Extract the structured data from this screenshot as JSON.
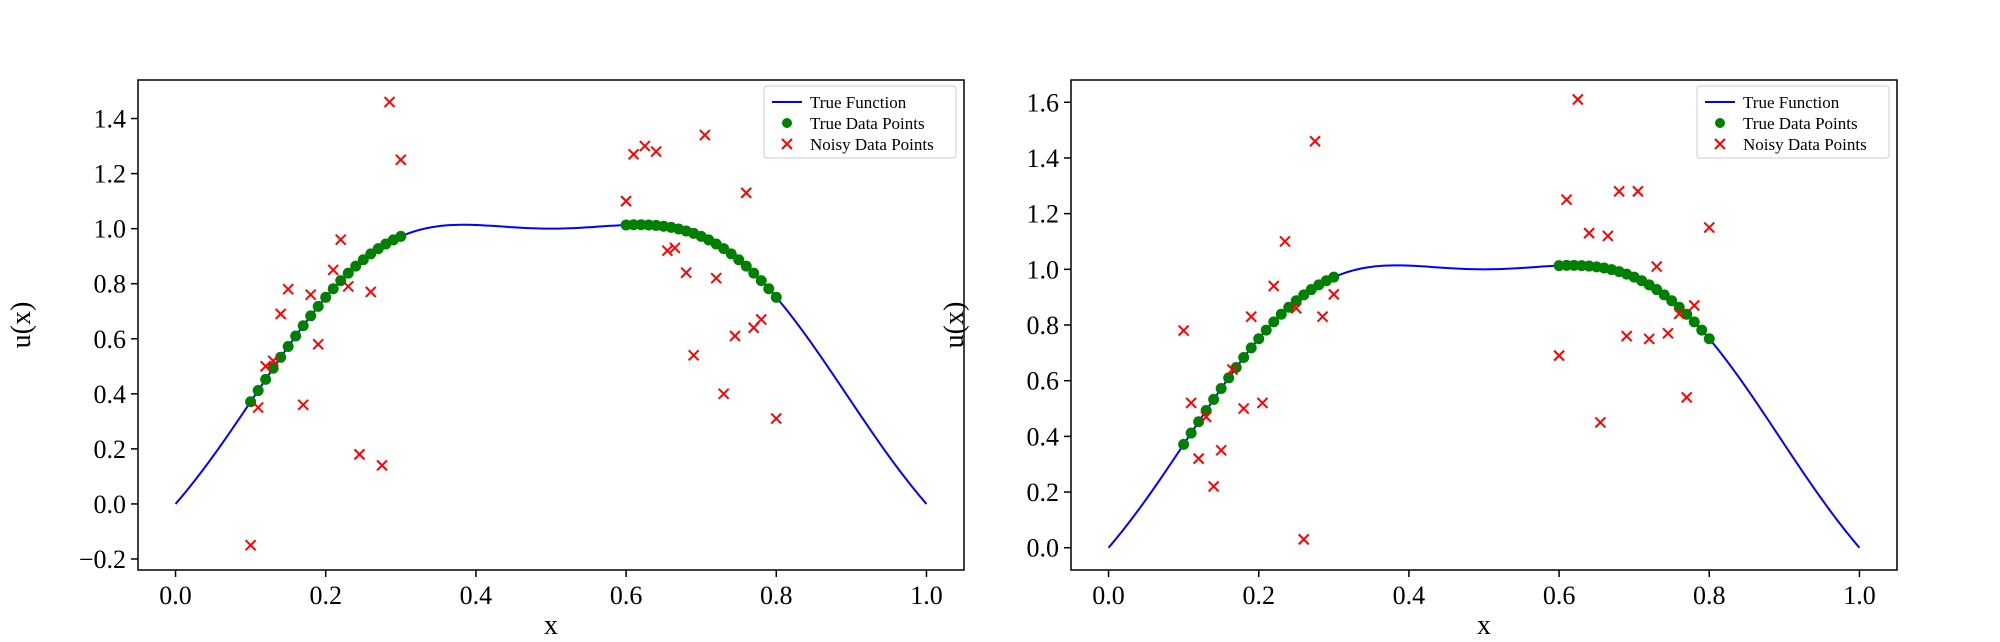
{
  "colors": {
    "true_function": "#0000ff",
    "true_points": "#008000",
    "noisy_points": "#ff0000",
    "axes": "#000000"
  },
  "chart_data": [
    {
      "type": "scatter",
      "title": "",
      "xlabel": "x",
      "ylabel": "u(x)",
      "xlim": [
        -0.05,
        1.05
      ],
      "ylim": [
        -0.24,
        1.54
      ],
      "xticks": [
        0.0,
        0.2,
        0.4,
        0.6,
        0.8,
        1.0
      ],
      "xtick_labels": [
        "0.0",
        "0.2",
        "0.4",
        "0.6",
        "0.8",
        "1.0"
      ],
      "yticks": [
        -0.2,
        0.0,
        0.2,
        0.4,
        0.6,
        0.8,
        1.0,
        1.2,
        1.4
      ],
      "ytick_labels": [
        "−0.2",
        "0.0",
        "0.2",
        "0.4",
        "0.6",
        "0.8",
        "1.0",
        "1.2",
        "1.4"
      ],
      "legend_position": "top-right",
      "legend": [
        "True Function",
        "True Data Points",
        "Noisy Data Points"
      ],
      "true_function": "u(x) = sin(pi*x) + 0.18*sin(2*pi*x)^2 on [0, 1]",
      "true_data_x": [
        0.1,
        0.11,
        0.12,
        0.13,
        0.14,
        0.15,
        0.16,
        0.17,
        0.18,
        0.19,
        0.2,
        0.21,
        0.22,
        0.23,
        0.24,
        0.25,
        0.26,
        0.27,
        0.28,
        0.29,
        0.3,
        0.6,
        0.61,
        0.62,
        0.63,
        0.64,
        0.65,
        0.66,
        0.67,
        0.68,
        0.69,
        0.7,
        0.71,
        0.72,
        0.73,
        0.74,
        0.75,
        0.76,
        0.77,
        0.78,
        0.79,
        0.8
      ],
      "noisy_x": [
        0.1,
        0.11,
        0.12,
        0.13,
        0.14,
        0.15,
        0.17,
        0.18,
        0.19,
        0.21,
        0.22,
        0.23,
        0.245,
        0.26,
        0.275,
        0.285,
        0.3,
        0.6,
        0.61,
        0.625,
        0.64,
        0.655,
        0.665,
        0.68,
        0.69,
        0.705,
        0.72,
        0.73,
        0.745,
        0.76,
        0.77,
        0.78,
        0.8
      ],
      "noisy_y": [
        -0.15,
        0.35,
        0.5,
        0.52,
        0.69,
        0.78,
        0.36,
        0.76,
        0.58,
        0.85,
        0.96,
        0.79,
        0.18,
        0.77,
        0.14,
        1.46,
        1.25,
        1.1,
        1.27,
        1.3,
        1.28,
        0.92,
        0.93,
        0.84,
        0.54,
        1.34,
        0.82,
        0.4,
        0.61,
        1.13,
        0.64,
        0.67,
        0.31
      ]
    },
    {
      "type": "scatter",
      "title": "",
      "xlabel": "x",
      "ylabel": "u(x)",
      "xlim": [
        -0.05,
        1.05
      ],
      "ylim": [
        -0.08,
        1.68
      ],
      "xticks": [
        0.0,
        0.2,
        0.4,
        0.6,
        0.8,
        1.0
      ],
      "xtick_labels": [
        "0.0",
        "0.2",
        "0.4",
        "0.6",
        "0.8",
        "1.0"
      ],
      "yticks": [
        0.0,
        0.2,
        0.4,
        0.6,
        0.8,
        1.0,
        1.2,
        1.4,
        1.6
      ],
      "ytick_labels": [
        "0.0",
        "0.2",
        "0.4",
        "0.6",
        "0.8",
        "1.0",
        "1.2",
        "1.4",
        "1.6"
      ],
      "legend_position": "top-right",
      "legend": [
        "True Function",
        "True Data Points",
        "Noisy Data Points"
      ],
      "true_function": "u(x) = sin(pi*x) + 0.18*sin(2*pi*x)^2 on [0, 1]",
      "true_data_x": [
        0.1,
        0.11,
        0.12,
        0.13,
        0.14,
        0.15,
        0.16,
        0.17,
        0.18,
        0.19,
        0.2,
        0.21,
        0.22,
        0.23,
        0.24,
        0.25,
        0.26,
        0.27,
        0.28,
        0.29,
        0.3,
        0.6,
        0.61,
        0.62,
        0.63,
        0.64,
        0.65,
        0.66,
        0.67,
        0.68,
        0.69,
        0.7,
        0.71,
        0.72,
        0.73,
        0.74,
        0.75,
        0.76,
        0.77,
        0.78,
        0.79,
        0.8
      ],
      "noisy_x": [
        0.1,
        0.11,
        0.12,
        0.13,
        0.14,
        0.15,
        0.165,
        0.18,
        0.19,
        0.205,
        0.22,
        0.235,
        0.25,
        0.26,
        0.275,
        0.285,
        0.3,
        0.6,
        0.61,
        0.625,
        0.64,
        0.655,
        0.665,
        0.68,
        0.69,
        0.705,
        0.72,
        0.73,
        0.745,
        0.76,
        0.77,
        0.78,
        0.8
      ],
      "noisy_y": [
        0.78,
        0.52,
        0.32,
        0.47,
        0.22,
        0.35,
        0.64,
        0.5,
        0.83,
        0.52,
        0.94,
        1.1,
        0.86,
        0.03,
        1.46,
        0.83,
        0.91,
        0.69,
        1.25,
        1.61,
        1.13,
        0.45,
        1.12,
        1.28,
        0.76,
        1.28,
        0.75,
        1.01,
        0.77,
        0.84,
        0.54,
        0.87,
        1.15
      ]
    }
  ]
}
